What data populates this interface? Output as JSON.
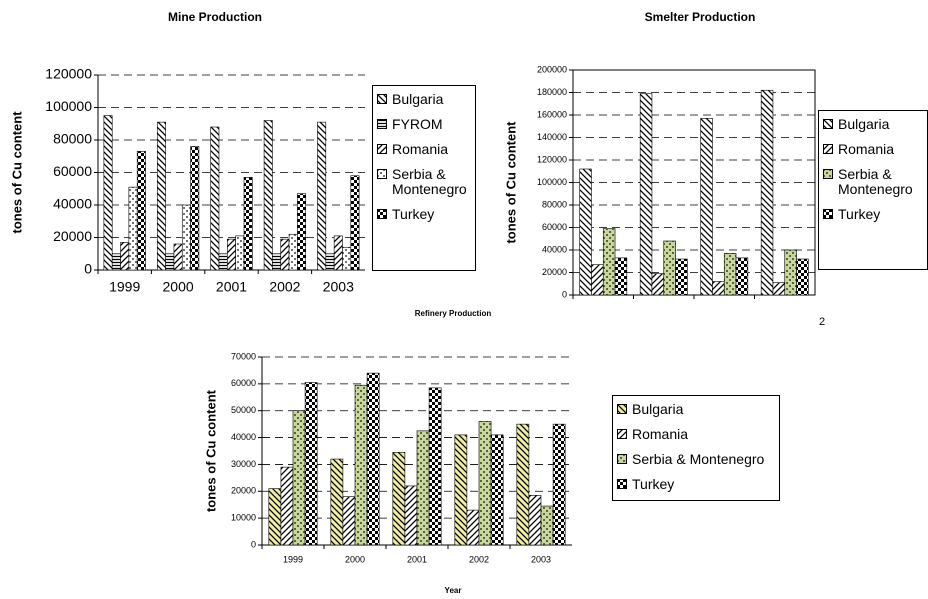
{
  "chart_data": [
    {
      "type": "bar",
      "title": "Mine Production",
      "y_label": "tones of Cu content",
      "categories": [
        "1999",
        "2000",
        "2001",
        "2002",
        "2003"
      ],
      "series": [
        {
          "name": "Bulgaria",
          "color": "#000000",
          "values": [
            95000,
            91000,
            88000,
            92000,
            91000
          ]
        },
        {
          "name": "FYROM",
          "color": "#000000",
          "values": [
            10000,
            10000,
            10000,
            10000,
            10000
          ]
        },
        {
          "name": "Romania",
          "color": "#000000",
          "values": [
            17000,
            16000,
            19000,
            19000,
            21000
          ]
        },
        {
          "name": "Serbia & Montenegro",
          "color": "#000000",
          "values": [
            51000,
            40000,
            21000,
            22000,
            14000
          ]
        },
        {
          "name": "Turkey",
          "color": "#000000",
          "values": [
            73000,
            76000,
            57000,
            47000,
            58000
          ]
        }
      ],
      "ylim": [
        0,
        120000
      ],
      "yticks": [
        0,
        20000,
        40000,
        60000,
        80000,
        100000,
        120000
      ],
      "grid": true
    },
    {
      "type": "bar",
      "title": "Smelter Production",
      "y_label": "tones of Cu content",
      "annotation": "2",
      "categories": [
        null,
        null,
        null,
        null
      ],
      "series": [
        {
          "name": "Bulgaria",
          "color": "#000000",
          "values": [
            112000,
            179000,
            157000,
            182000
          ]
        },
        {
          "name": "Romania",
          "color": "#000000",
          "values": [
            27000,
            19000,
            12000,
            11000
          ]
        },
        {
          "name": "Serbia & Montenegro",
          "color": "#c8d79a",
          "values": [
            59000,
            48000,
            37000,
            40000
          ]
        },
        {
          "name": "Turkey",
          "color": "#000000",
          "values": [
            33000,
            32000,
            33000,
            32000
          ]
        }
      ],
      "ylim": [
        0,
        200000
      ],
      "yticks": [
        0,
        20000,
        40000,
        60000,
        80000,
        100000,
        120000,
        140000,
        160000,
        180000,
        200000
      ],
      "grid": true
    },
    {
      "type": "bar",
      "title": "Refinery Production",
      "y_label": "tones of Cu content",
      "x_label": "Year",
      "categories": [
        "1999",
        "2000",
        "2001",
        "2002",
        "2003"
      ],
      "series": [
        {
          "name": "Bulgaria",
          "color": "#f3efa0",
          "values": [
            21000,
            32000,
            34500,
            41000,
            45000
          ]
        },
        {
          "name": "Romania",
          "color": "#000000",
          "values": [
            29000,
            18000,
            22000,
            13000,
            18500
          ]
        },
        {
          "name": "Serbia & Montenegro",
          "color": "#c8d79a",
          "values": [
            50000,
            59500,
            42500,
            46000,
            14500
          ]
        },
        {
          "name": "Turkey",
          "color": "#000000",
          "values": [
            60500,
            64000,
            58500,
            41000,
            45000
          ]
        }
      ],
      "ylim": [
        0,
        70000
      ],
      "yticks": [
        0,
        10000,
        20000,
        30000,
        40000,
        50000,
        60000,
        70000
      ],
      "grid": true
    }
  ]
}
